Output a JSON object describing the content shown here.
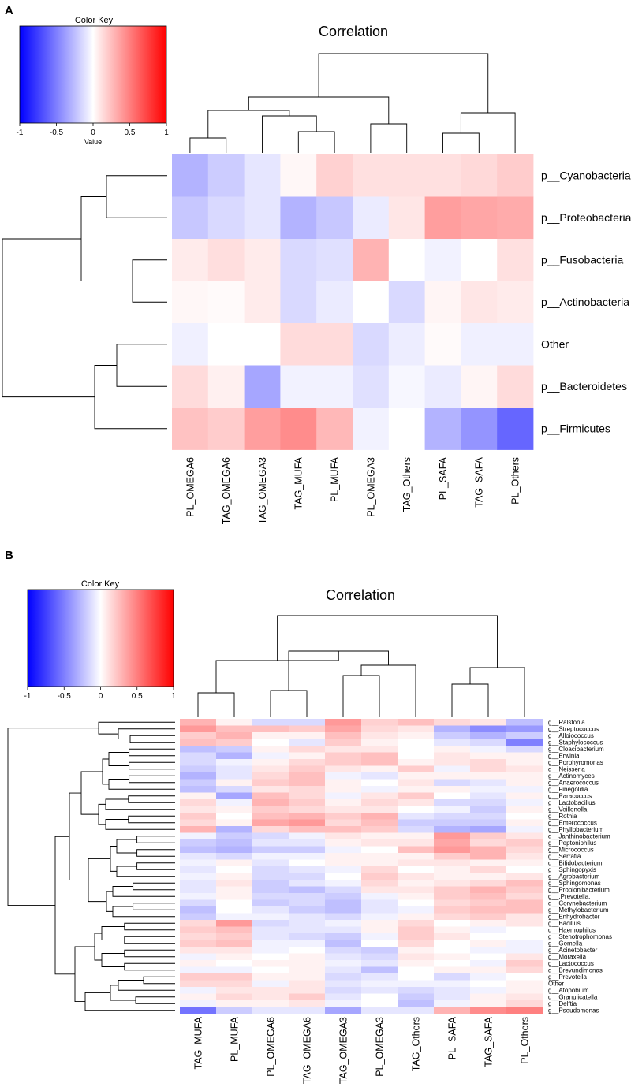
{
  "panels": [
    {
      "label": "A",
      "color_key": {
        "title": "Color Key",
        "xlabel": "Value",
        "ticks": [
          "-1",
          "-0.5",
          "0",
          "0.5",
          "1"
        ]
      },
      "title": "Correlation",
      "columns": [
        "PL_OMEGA6",
        "TAG_OMEGA6",
        "TAG_OMEGA3",
        "TAG_MUFA",
        "PL_MUFA",
        "PL_OMEGA3",
        "TAG_Others",
        "PL_SAFA",
        "TAG_SAFA",
        "PL_Others"
      ],
      "rows": [
        "p__Cyanobacteria",
        "p__Proteobacteria",
        "p__Fusobacteria",
        "p__Actinobacteria",
        "Other",
        "p__Bacteroidetes",
        "p__Firmicutes"
      ]
    },
    {
      "label": "B",
      "color_key": {
        "title": "Color Key",
        "xlabel": "",
        "ticks": [
          "-1",
          "-0.5",
          "0",
          "0.5",
          "1"
        ]
      },
      "title": "Correlation",
      "columns": [
        "TAG_MUFA",
        "PL_MUFA",
        "PL_OMEGA6",
        "TAG_OMEGA6",
        "TAG_OMEGA3",
        "PL_OMEGA3",
        "TAG_Others",
        "PL_SAFA",
        "TAG_SAFA",
        "PL_Others"
      ],
      "rows": [
        "g__Ralstonia",
        "g__Streptococcus",
        "g__Alloiococcus",
        "g__Staphylococcus",
        "g__Cloacibacterium",
        "g__Erwinia",
        "g__Porphyromonas",
        "g__Neisseria",
        "g__Actinomyces",
        "g__Anaerococcus",
        "g__Finegoldia",
        "g__Paracoccus",
        "g__Lactobacillus",
        "g__Veillonella",
        "g__Rothia",
        "g__Enterococcus",
        "g__Phyllobacterium",
        "g__Janthinobacterium",
        "g__Peptoniphilus",
        "g__Micrococcus",
        "g__Serratia",
        "g__Bifidobacterium",
        "g__Sphingopyxis",
        "g__Agrobacterium",
        "g__Sphingomonas",
        "g__Propionibacterium",
        "g__.Prevotella.",
        "g__Corynebacterium",
        "g__Methylobacterium",
        "g__Enhydrobacter",
        "g__Bacillus",
        "g__Haemophilus",
        "g__Stenotrophomonas",
        "g__Gemella",
        "g__Acinetobacter",
        "g__Moraxella",
        "g__Lactococcus",
        "g__Brevundimonas",
        "g__Prevotella",
        "Other",
        "g__Atopobium",
        "g__Granulicatella",
        "g__Delftia",
        "g__Pseudomonas"
      ]
    }
  ],
  "chart_data": [
    {
      "type": "heatmap",
      "title": "Correlation",
      "color_key": {
        "title": "Color Key",
        "xlabel": "Value",
        "range": [
          -1,
          1
        ],
        "ticks": [
          -1,
          -0.5,
          0,
          0.5,
          1
        ]
      },
      "columns": [
        "PL_OMEGA6",
        "TAG_OMEGA6",
        "TAG_OMEGA3",
        "TAG_MUFA",
        "PL_MUFA",
        "PL_OMEGA3",
        "TAG_Others",
        "PL_SAFA",
        "TAG_SAFA",
        "PL_Others"
      ],
      "rows": [
        "p__Cyanobacteria",
        "p__Proteobacteria",
        "p__Fusobacteria",
        "p__Actinobacteria",
        "Other",
        "p__Bacteroidetes",
        "p__Firmicutes"
      ],
      "values": [
        [
          -0.3,
          -0.2,
          -0.1,
          0.03,
          0.18,
          0.12,
          0.12,
          0.12,
          0.15,
          0.2
        ],
        [
          -0.22,
          -0.15,
          -0.1,
          -0.3,
          -0.22,
          -0.08,
          0.1,
          0.38,
          0.35,
          0.33
        ],
        [
          0.08,
          0.13,
          0.08,
          -0.15,
          -0.12,
          0.3,
          0.0,
          -0.05,
          0.0,
          0.12
        ],
        [
          0.03,
          0.02,
          0.08,
          -0.15,
          -0.08,
          0.0,
          -0.15,
          0.04,
          0.1,
          0.08
        ],
        [
          -0.06,
          0.0,
          0.0,
          0.14,
          0.14,
          -0.15,
          -0.07,
          0.02,
          -0.06,
          -0.06
        ],
        [
          0.14,
          0.06,
          -0.35,
          -0.05,
          -0.05,
          -0.12,
          -0.03,
          -0.08,
          0.04,
          0.14
        ],
        [
          0.24,
          0.2,
          0.38,
          0.45,
          0.28,
          -0.05,
          0.0,
          -0.3,
          -0.42,
          -0.6
        ]
      ]
    },
    {
      "type": "heatmap",
      "title": "Correlation",
      "color_key": {
        "title": "Color Key",
        "range": [
          -1,
          1
        ],
        "ticks": [
          -1,
          -0.5,
          0,
          0.5,
          1
        ]
      },
      "columns": [
        "TAG_MUFA",
        "PL_MUFA",
        "PL_OMEGA6",
        "TAG_OMEGA6",
        "TAG_OMEGA3",
        "PL_OMEGA3",
        "TAG_Others",
        "PL_SAFA",
        "TAG_SAFA",
        "PL_Others"
      ],
      "rows": [
        "g__Ralstonia",
        "g__Streptococcus",
        "g__Alloiococcus",
        "g__Staphylococcus",
        "g__Cloacibacterium",
        "g__Erwinia",
        "g__Porphyromonas",
        "g__Neisseria",
        "g__Actinomyces",
        "g__Anaerococcus",
        "g__Finegoldia",
        "g__Paracoccus",
        "g__Lactobacillus",
        "g__Veillonella",
        "g__Rothia",
        "g__Enterococcus",
        "g__Phyllobacterium",
        "g__Janthinobacterium",
        "g__Peptoniphilus",
        "g__Micrococcus",
        "g__Serratia",
        "g__Bifidobacterium",
        "g__Sphingopyxis",
        "g__Agrobacterium",
        "g__Sphingomonas",
        "g__Propionibacterium",
        "g__.Prevotella.",
        "g__Corynebacterium",
        "g__Methylobacterium",
        "g__Enhydrobacter",
        "g__Bacillus",
        "g__Haemophilus",
        "g__Stenotrophomonas",
        "g__Gemella",
        "g__Acinetobacter",
        "g__Moraxella",
        "g__Lactococcus",
        "g__Brevundimonas",
        "g__Prevotella",
        "Other",
        "g__Atopobium",
        "g__Granulicatella",
        "g__Delftia",
        "g__Pseudomonas"
      ],
      "values": [
        [
          0.3,
          0.05,
          -0.15,
          -0.15,
          0.4,
          0.18,
          0.25,
          0.15,
          0.1,
          -0.25
        ],
        [
          0.4,
          0.25,
          0.25,
          0.2,
          0.35,
          0.15,
          0.1,
          -0.3,
          -0.45,
          -0.4
        ],
        [
          0.2,
          0.3,
          0.05,
          0.05,
          0.25,
          0.1,
          0.05,
          -0.2,
          -0.3,
          -0.2
        ],
        [
          0.25,
          0.2,
          0.0,
          -0.1,
          0.2,
          0.05,
          0.0,
          -0.1,
          -0.15,
          -0.5
        ],
        [
          -0.25,
          -0.2,
          0.05,
          0.15,
          0.1,
          0.1,
          0.0,
          0.05,
          -0.05,
          -0.15
        ],
        [
          -0.15,
          -0.3,
          -0.05,
          0.05,
          0.2,
          0.25,
          0.0,
          0.1,
          0.05,
          0.05
        ],
        [
          -0.15,
          -0.05,
          0.05,
          0.15,
          0.2,
          0.25,
          0.05,
          0.1,
          0.15,
          0.05
        ],
        [
          -0.2,
          -0.1,
          0.1,
          0.2,
          0.1,
          0.05,
          0.2,
          -0.05,
          0.15,
          0.1
        ],
        [
          -0.3,
          -0.1,
          0.15,
          0.25,
          -0.05,
          -0.1,
          0.05,
          0.05,
          0.05,
          0.05
        ],
        [
          -0.2,
          0.05,
          0.2,
          0.25,
          0.05,
          0.0,
          0.1,
          -0.15,
          -0.1,
          0.05
        ],
        [
          -0.25,
          -0.15,
          0.1,
          0.15,
          0.05,
          -0.05,
          0.05,
          0.05,
          -0.05,
          -0.05
        ],
        [
          0.05,
          -0.35,
          0.25,
          0.15,
          -0.05,
          0.1,
          0.2,
          0.0,
          -0.1,
          0.05
        ],
        [
          0.15,
          -0.05,
          0.3,
          0.2,
          0.05,
          0.15,
          0.1,
          -0.15,
          -0.15,
          -0.05
        ],
        [
          0.1,
          0.05,
          0.2,
          0.15,
          0.1,
          0.1,
          0.0,
          -0.05,
          -0.2,
          0.05
        ],
        [
          0.2,
          0.0,
          0.25,
          0.3,
          0.2,
          0.3,
          -0.1,
          -0.15,
          -0.15,
          0.0
        ],
        [
          0.15,
          0.05,
          0.35,
          0.4,
          0.15,
          0.25,
          -0.2,
          -0.2,
          -0.2,
          0.05
        ],
        [
          0.3,
          -0.3,
          0.15,
          0.25,
          0.25,
          0.2,
          -0.15,
          -0.3,
          -0.35,
          -0.05
        ],
        [
          -0.05,
          -0.2,
          -0.15,
          -0.05,
          0.1,
          0.05,
          0.05,
          0.4,
          0.2,
          0.1
        ],
        [
          -0.2,
          -0.25,
          -0.1,
          -0.1,
          0.05,
          0.1,
          0.1,
          0.35,
          0.15,
          0.2
        ],
        [
          -0.25,
          -0.3,
          -0.2,
          -0.2,
          -0.05,
          0.0,
          0.25,
          0.4,
          0.3,
          0.15
        ],
        [
          -0.1,
          -0.15,
          -0.05,
          -0.05,
          0.05,
          0.05,
          0.05,
          0.2,
          0.3,
          0.1
        ],
        [
          -0.05,
          0.05,
          -0.1,
          0.0,
          0.05,
          0.05,
          0.1,
          0.1,
          0.05,
          0.05
        ],
        [
          -0.1,
          0.0,
          -0.15,
          -0.1,
          -0.05,
          0.15,
          0.0,
          0.05,
          0.15,
          0.0
        ],
        [
          -0.05,
          0.05,
          -0.15,
          -0.15,
          0.0,
          0.2,
          0.1,
          0.05,
          0.05,
          0.1
        ],
        [
          -0.1,
          0.1,
          -0.2,
          -0.1,
          -0.05,
          0.15,
          0.05,
          0.1,
          0.15,
          0.25
        ],
        [
          -0.1,
          0.05,
          -0.2,
          -0.25,
          -0.15,
          0.1,
          0.1,
          0.2,
          0.3,
          0.2
        ],
        [
          -0.05,
          0.05,
          -0.15,
          -0.15,
          -0.2,
          -0.05,
          0.05,
          0.2,
          0.25,
          0.15
        ],
        [
          -0.15,
          0.0,
          -0.2,
          -0.15,
          -0.25,
          -0.1,
          0.0,
          0.15,
          0.2,
          0.25
        ],
        [
          -0.25,
          0.0,
          -0.1,
          -0.2,
          -0.25,
          -0.1,
          -0.05,
          0.2,
          0.25,
          0.25
        ],
        [
          -0.2,
          -0.05,
          -0.05,
          -0.1,
          -0.15,
          -0.05,
          0.05,
          0.15,
          0.2,
          0.1
        ],
        [
          0.15,
          0.4,
          -0.15,
          -0.1,
          -0.05,
          0.05,
          0.15,
          0.0,
          0.05,
          0.1
        ],
        [
          0.2,
          0.25,
          -0.1,
          -0.1,
          -0.1,
          0.05,
          0.2,
          0.05,
          -0.05,
          0.0
        ],
        [
          0.15,
          0.2,
          -0.1,
          -0.15,
          -0.2,
          -0.05,
          0.2,
          0.1,
          0.0,
          0.0
        ],
        [
          0.2,
          0.25,
          -0.05,
          -0.05,
          -0.25,
          0.0,
          0.15,
          0.0,
          0.05,
          -0.05
        ],
        [
          0.1,
          0.1,
          -0.05,
          0.0,
          -0.15,
          -0.2,
          0.05,
          0.0,
          -0.05,
          -0.05
        ],
        [
          -0.05,
          0.05,
          0.0,
          0.05,
          -0.1,
          -0.15,
          0.1,
          0.05,
          0.0,
          0.1
        ],
        [
          0.05,
          0.0,
          0.05,
          0.05,
          -0.05,
          -0.1,
          0.05,
          0.0,
          -0.05,
          0.2
        ],
        [
          -0.05,
          -0.05,
          0.0,
          0.05,
          -0.1,
          -0.25,
          0.0,
          0.05,
          0.05,
          0.15
        ],
        [
          0.2,
          0.2,
          0.05,
          0.05,
          -0.15,
          -0.1,
          0.0,
          -0.15,
          -0.05,
          0.0
        ],
        [
          0.15,
          0.15,
          -0.05,
          0.1,
          -0.1,
          -0.05,
          -0.05,
          -0.05,
          0.0,
          0.05
        ],
        [
          -0.05,
          0.1,
          0.1,
          0.1,
          -0.15,
          -0.1,
          -0.15,
          -0.1,
          -0.05,
          0.05
        ],
        [
          0.05,
          0.15,
          0.1,
          0.2,
          -0.1,
          0.0,
          -0.2,
          -0.1,
          0.05,
          0.1
        ],
        [
          -0.05,
          0.05,
          0.05,
          0.1,
          -0.05,
          0.0,
          -0.25,
          -0.05,
          0.05,
          0.15
        ],
        [
          -0.55,
          -0.2,
          -0.1,
          -0.1,
          -0.35,
          -0.1,
          -0.1,
          0.3,
          0.45,
          0.5
        ]
      ]
    }
  ]
}
